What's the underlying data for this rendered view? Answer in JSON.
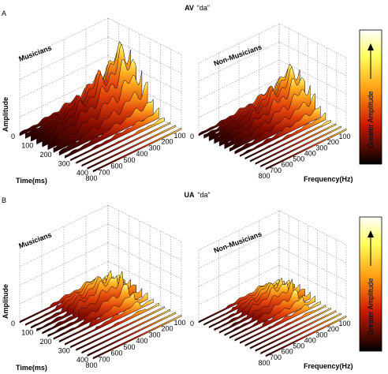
{
  "panels": [
    {
      "label": "A",
      "title": {
        "condition": "AV",
        "syllable": "“da”"
      },
      "plots": [
        {
          "title": "Musicians"
        },
        {
          "title": "Non-Musicians"
        }
      ],
      "colorbar_label": "Greater Amplitude"
    },
    {
      "label": "B",
      "title": {
        "condition": "UA",
        "syllable": "“da”"
      },
      "plots": [
        {
          "title": "Musicians"
        },
        {
          "title": "Non-Musicians"
        }
      ],
      "colorbar_label": "Greater Amplitude"
    }
  ],
  "axes": {
    "y_label": "Amplitude",
    "x_label": "Time(ms)",
    "z_label": "Frequency(Hz)",
    "time_ticks": [
      "0",
      "100",
      "200",
      "300",
      "400"
    ],
    "freq_ticks": [
      "800",
      "700",
      "600",
      "500",
      "400",
      "300",
      "200",
      "100"
    ]
  }
}
